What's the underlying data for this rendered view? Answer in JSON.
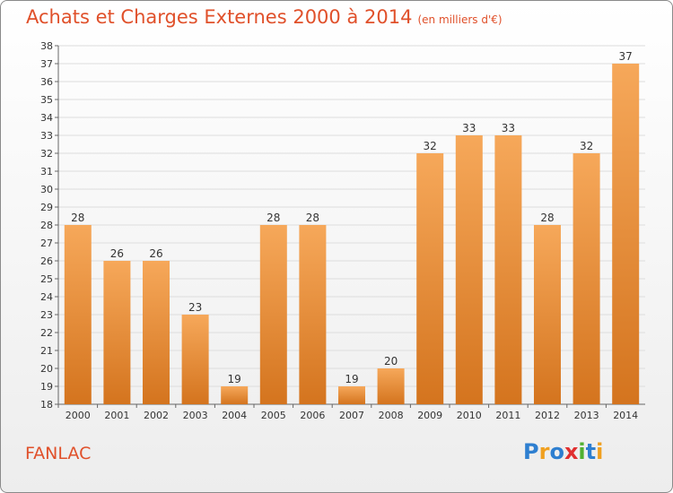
{
  "header": {
    "title": "Achats et Charges Externes 2000 à 2014",
    "subtitle": "(en milliers d'€)"
  },
  "place_label": "FANLAC",
  "logo": {
    "text": "Proxiti",
    "letters": [
      {
        "ch": "P",
        "color": "#2e7fd0"
      },
      {
        "ch": "r",
        "color": "#f0a020"
      },
      {
        "ch": "o",
        "color": "#2e7fd0"
      },
      {
        "ch": "x",
        "color": "#e03030"
      },
      {
        "ch": "i",
        "color": "#50b030"
      },
      {
        "ch": "t",
        "color": "#2e7fd0"
      },
      {
        "ch": "i",
        "color": "#f0a020"
      }
    ]
  },
  "colors": {
    "bar_light": "#f6a85a",
    "bar_dark": "#d4741e",
    "axis": "#666666",
    "grid": "#dddddd",
    "text": "#333333"
  },
  "chart_data": {
    "type": "bar",
    "categories": [
      "2000",
      "2001",
      "2002",
      "2003",
      "2004",
      "2005",
      "2006",
      "2007",
      "2008",
      "2009",
      "2010",
      "2011",
      "2012",
      "2013",
      "2014"
    ],
    "values": [
      28,
      26,
      26,
      23,
      19,
      28,
      28,
      19,
      20,
      32,
      33,
      33,
      28,
      32,
      37
    ],
    "data_labels": [
      "28",
      "26",
      "26",
      "23",
      "19",
      "28",
      "28",
      "19",
      "20",
      "32",
      "33",
      "33",
      "28",
      "32",
      "37"
    ],
    "ylim": [
      18,
      38
    ],
    "yticks": [
      18,
      19,
      20,
      21,
      22,
      23,
      24,
      25,
      26,
      27,
      28,
      29,
      30,
      31,
      32,
      33,
      34,
      35,
      36,
      37,
      38
    ],
    "grid": true
  }
}
